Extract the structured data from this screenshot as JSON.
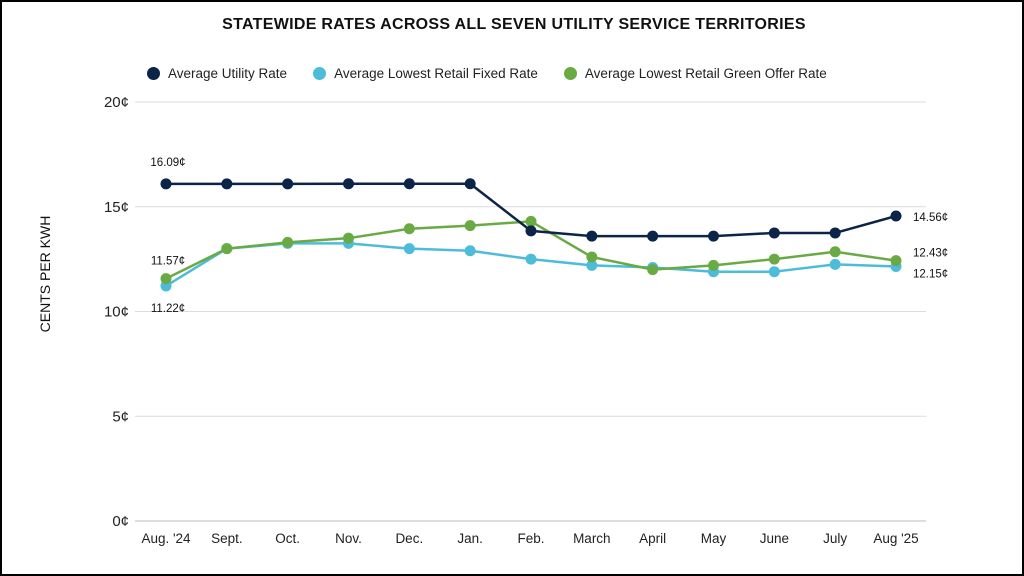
{
  "chart_data": {
    "type": "line",
    "title": "STATEWIDE RATES ACROSS ALL SEVEN UTILITY SERVICE TERRITORIES",
    "xlabel": "",
    "ylabel": "CENTS PER KWH",
    "ylim": [
      0,
      20
    ],
    "yticks": [
      0,
      5,
      10,
      15,
      20
    ],
    "ytick_labels": [
      "0¢",
      "5¢",
      "10¢",
      "15¢",
      "20¢"
    ],
    "grid": true,
    "legend_position": "top",
    "categories": [
      "Aug. '24",
      "Sept.",
      "Oct.",
      "Nov.",
      "Dec.",
      "Jan.",
      "Feb.",
      "March",
      "April",
      "May",
      "June",
      "July",
      "Aug '25"
    ],
    "series": [
      {
        "name": "Average Utility Rate",
        "color": "#0b2447",
        "values": [
          16.09,
          16.09,
          16.09,
          16.1,
          16.1,
          16.1,
          13.85,
          13.6,
          13.6,
          13.6,
          13.75,
          13.75,
          14.56
        ],
        "data_labels": [
          {
            "index": 0,
            "text": "16.09¢"
          },
          {
            "index": 12,
            "text": "14.56¢"
          }
        ]
      },
      {
        "name": "Average Lowest Retail Fixed Rate",
        "color": "#4cbcd9",
        "values": [
          11.22,
          13.0,
          13.25,
          13.25,
          13.0,
          12.9,
          12.5,
          12.2,
          12.1,
          11.9,
          11.9,
          12.25,
          12.15
        ],
        "data_labels": [
          {
            "index": 0,
            "text": "11.22¢"
          },
          {
            "index": 12,
            "text": "12.15¢"
          }
        ]
      },
      {
        "name": "Average Lowest Retail Green Offer Rate",
        "color": "#6aaa45",
        "values": [
          11.57,
          13.0,
          13.3,
          13.5,
          13.95,
          14.1,
          14.3,
          12.6,
          12.0,
          12.2,
          12.5,
          12.85,
          12.43
        ],
        "data_labels": [
          {
            "index": 0,
            "text": "11.57¢"
          },
          {
            "index": 12,
            "text": "12.43¢"
          }
        ]
      }
    ]
  }
}
